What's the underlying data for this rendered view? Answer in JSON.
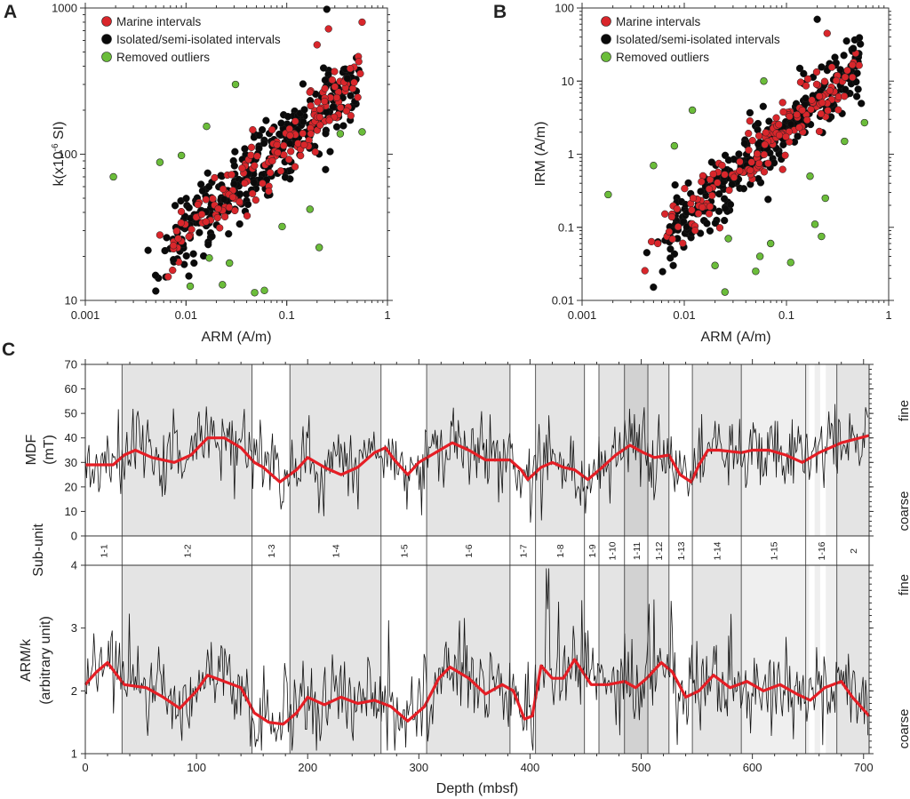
{
  "colors": {
    "marine": "#d9262b",
    "isolated": "#0a0a0a",
    "outlier": "#6bbd3a",
    "trend": "#e51e25",
    "shade_mid": "#e4e4e4",
    "shade_dark": "#d2d2d2",
    "shade_light": "#efefef",
    "frame": "#333333",
    "trace": "#111111"
  },
  "chart_data": [
    {
      "id": "A",
      "type": "scatter",
      "panel_label": "A",
      "xlabel": "ARM (A/m)",
      "ylabel": "k(x10",
      "ylabel_sup": "-6",
      "ylabel_tail": " SI)",
      "xscale": "log",
      "yscale": "log",
      "xlim": [
        0.001,
        1
      ],
      "ylim": [
        10,
        1000
      ],
      "xticks": [
        "0.001",
        "0.01",
        "0.1",
        "1"
      ],
      "yticks": [
        "10",
        "100",
        "1000"
      ],
      "legend": [
        "Marine intervals",
        "Isolated/semi-isolated intervals",
        "Removed outliers"
      ],
      "outliers": [
        [
          0.0019,
          70
        ],
        [
          0.0055,
          88
        ],
        [
          0.009,
          98
        ],
        [
          0.011,
          12.5
        ],
        [
          0.016,
          155
        ],
        [
          0.017,
          19.5
        ],
        [
          0.023,
          12.8
        ],
        [
          0.027,
          18
        ],
        [
          0.031,
          300
        ],
        [
          0.048,
          11.3
        ],
        [
          0.06,
          11.7
        ],
        [
          0.09,
          32
        ],
        [
          0.17,
          42
        ],
        [
          0.21,
          23
        ],
        [
          0.34,
          138
        ],
        [
          0.56,
          142
        ]
      ],
      "isolated_count": 330,
      "marine_count": 160,
      "extra_points": {
        "marine": [
          [
            0.0055,
            28
          ],
          [
            0.56,
            800
          ],
          [
            0.2,
            560
          ],
          [
            0.26,
            720
          ]
        ],
        "isolated": [
          [
            0.0042,
            22
          ],
          [
            0.0075,
            19
          ],
          [
            0.012,
            18
          ],
          [
            0.4,
            330
          ],
          [
            0.25,
            980
          ]
        ]
      }
    },
    {
      "id": "B",
      "type": "scatter",
      "panel_label": "B",
      "xlabel": "ARM (A/m)",
      "ylabel": "IRM (A/m)",
      "xscale": "log",
      "yscale": "log",
      "xlim": [
        0.001,
        1
      ],
      "ylim": [
        0.01,
        100
      ],
      "xticks": [
        "0.001",
        "0.01",
        "0.1",
        "1"
      ],
      "yticks": [
        "0.01",
        "0.1",
        "1",
        "10",
        "100"
      ],
      "legend": [
        "Marine intervals",
        "Isolated/semi-isolated intervals",
        "Removed outliers"
      ],
      "outliers": [
        [
          0.0018,
          0.28
        ],
        [
          0.005,
          0.7
        ],
        [
          0.008,
          1.3
        ],
        [
          0.012,
          4
        ],
        [
          0.02,
          0.03
        ],
        [
          0.025,
          0.013
        ],
        [
          0.027,
          0.07
        ],
        [
          0.05,
          0.025
        ],
        [
          0.055,
          0.04
        ],
        [
          0.07,
          0.06
        ],
        [
          0.11,
          0.033
        ],
        [
          0.17,
          0.5
        ],
        [
          0.19,
          0.11
        ],
        [
          0.22,
          0.075
        ],
        [
          0.24,
          0.25
        ],
        [
          0.37,
          1.5
        ],
        [
          0.58,
          2.7
        ],
        [
          0.06,
          10
        ]
      ],
      "isolated_count": 330,
      "marine_count": 160,
      "extra_points": {
        "marine": [
          [
            0.0055,
            0.06
          ],
          [
            0.25,
            45
          ]
        ],
        "isolated": [
          [
            0.0043,
            0.045
          ],
          [
            0.0078,
            0.03
          ],
          [
            0.45,
            28
          ],
          [
            0.2,
            70
          ]
        ]
      }
    },
    {
      "id": "C",
      "type": "line",
      "panel_label": "C",
      "xlabel": "Depth (mbsf)",
      "xlim": [
        0,
        705
      ],
      "xticks": [
        "0",
        "100",
        "200",
        "300",
        "400",
        "500",
        "600",
        "700"
      ],
      "mdf": {
        "ylabel": [
          "MDF",
          "(mT)"
        ],
        "ylim": [
          0,
          70
        ],
        "yticks": [
          "0",
          "10",
          "20",
          "30",
          "40",
          "50",
          "60",
          "70"
        ],
        "right_labels": [
          "fine",
          "coarse"
        ],
        "trend": [
          [
            0,
            29
          ],
          [
            25,
            29
          ],
          [
            35,
            33
          ],
          [
            45,
            35
          ],
          [
            60,
            32
          ],
          [
            80,
            30
          ],
          [
            95,
            33
          ],
          [
            110,
            40
          ],
          [
            125,
            40
          ],
          [
            140,
            36
          ],
          [
            152,
            30
          ],
          [
            160,
            28
          ],
          [
            175,
            22
          ],
          [
            190,
            27
          ],
          [
            200,
            32
          ],
          [
            215,
            28
          ],
          [
            230,
            25
          ],
          [
            245,
            28
          ],
          [
            260,
            34
          ],
          [
            270,
            36
          ],
          [
            278,
            31
          ],
          [
            290,
            25
          ],
          [
            300,
            30
          ],
          [
            315,
            34
          ],
          [
            330,
            38
          ],
          [
            345,
            35
          ],
          [
            360,
            31
          ],
          [
            372,
            31
          ],
          [
            382,
            31
          ],
          [
            392,
            27
          ],
          [
            398,
            23
          ],
          [
            410,
            28
          ],
          [
            420,
            30
          ],
          [
            430,
            28
          ],
          [
            440,
            27
          ],
          [
            452,
            23
          ],
          [
            465,
            28
          ],
          [
            477,
            33
          ],
          [
            490,
            37
          ],
          [
            502,
            34
          ],
          [
            512,
            32
          ],
          [
            525,
            33
          ],
          [
            535,
            25
          ],
          [
            545,
            22
          ],
          [
            552,
            29
          ],
          [
            560,
            35
          ],
          [
            570,
            35
          ],
          [
            590,
            34
          ],
          [
            600,
            35
          ],
          [
            615,
            35
          ],
          [
            630,
            33
          ],
          [
            645,
            30
          ],
          [
            660,
            34
          ],
          [
            680,
            38
          ],
          [
            705,
            41
          ]
        ]
      },
      "armk": {
        "ylabel": [
          "ARM/k",
          "(arbitrary unit)"
        ],
        "ylim": [
          1,
          4
        ],
        "yticks": [
          "1",
          "2",
          "3",
          "4"
        ],
        "right_labels": [
          "fine",
          "coarse"
        ],
        "trend": [
          [
            0,
            2.1
          ],
          [
            10,
            2.3
          ],
          [
            20,
            2.45
          ],
          [
            35,
            2.1
          ],
          [
            55,
            2.05
          ],
          [
            70,
            1.9
          ],
          [
            85,
            1.72
          ],
          [
            100,
            2.0
          ],
          [
            110,
            2.25
          ],
          [
            125,
            2.15
          ],
          [
            140,
            2.05
          ],
          [
            152,
            1.65
          ],
          [
            165,
            1.5
          ],
          [
            178,
            1.47
          ],
          [
            190,
            1.65
          ],
          [
            200,
            1.9
          ],
          [
            215,
            1.78
          ],
          [
            230,
            1.9
          ],
          [
            245,
            1.8
          ],
          [
            260,
            1.85
          ],
          [
            275,
            1.75
          ],
          [
            290,
            1.52
          ],
          [
            305,
            1.75
          ],
          [
            318,
            2.2
          ],
          [
            328,
            2.38
          ],
          [
            345,
            2.2
          ],
          [
            360,
            1.95
          ],
          [
            375,
            2.1
          ],
          [
            385,
            2.0
          ],
          [
            395,
            1.55
          ],
          [
            402,
            1.6
          ],
          [
            410,
            2.4
          ],
          [
            420,
            2.2
          ],
          [
            430,
            2.2
          ],
          [
            440,
            2.5
          ],
          [
            455,
            2.1
          ],
          [
            470,
            2.1
          ],
          [
            485,
            2.15
          ],
          [
            495,
            2.05
          ],
          [
            505,
            2.2
          ],
          [
            518,
            2.45
          ],
          [
            528,
            2.3
          ],
          [
            540,
            1.9
          ],
          [
            552,
            2.0
          ],
          [
            565,
            2.25
          ],
          [
            580,
            2.05
          ],
          [
            595,
            2.15
          ],
          [
            610,
            2.0
          ],
          [
            625,
            2.1
          ],
          [
            640,
            1.95
          ],
          [
            652,
            1.85
          ],
          [
            665,
            2.05
          ],
          [
            680,
            2.15
          ],
          [
            690,
            1.9
          ],
          [
            705,
            1.6
          ]
        ]
      },
      "subunit_label": "Sub-unit",
      "subunits": [
        {
          "label": "1-1",
          "start": 0,
          "end": 33,
          "shade": "none"
        },
        {
          "label": "1-2",
          "start": 33,
          "end": 150,
          "shade": "mid"
        },
        {
          "label": "1-3",
          "start": 150,
          "end": 184,
          "shade": "none"
        },
        {
          "label": "1-4",
          "start": 184,
          "end": 266,
          "shade": "mid"
        },
        {
          "label": "1-5",
          "start": 266,
          "end": 307,
          "shade": "none"
        },
        {
          "label": "1-6",
          "start": 307,
          "end": 382,
          "shade": "mid"
        },
        {
          "label": "1-7",
          "start": 382,
          "end": 405,
          "shade": "none"
        },
        {
          "label": "1-8",
          "start": 405,
          "end": 449,
          "shade": "mid"
        },
        {
          "label": "1-9",
          "start": 449,
          "end": 462,
          "shade": "none"
        },
        {
          "label": "1-10",
          "start": 462,
          "end": 485,
          "shade": "mid"
        },
        {
          "label": "1-11",
          "start": 485,
          "end": 506,
          "shade": "dark"
        },
        {
          "label": "1-12",
          "start": 506,
          "end": 525,
          "shade": "mid"
        },
        {
          "label": "1-13",
          "start": 525,
          "end": 546,
          "shade": "none"
        },
        {
          "label": "1-14",
          "start": 546,
          "end": 590,
          "shade": "mid"
        },
        {
          "label": "1-15",
          "start": 590,
          "end": 648,
          "shade": "light"
        },
        {
          "label": "1-16",
          "start": 648,
          "end": 676,
          "shade": "light"
        },
        {
          "label": "2",
          "start": 676,
          "end": 705,
          "shade": "mid"
        }
      ]
    }
  ]
}
